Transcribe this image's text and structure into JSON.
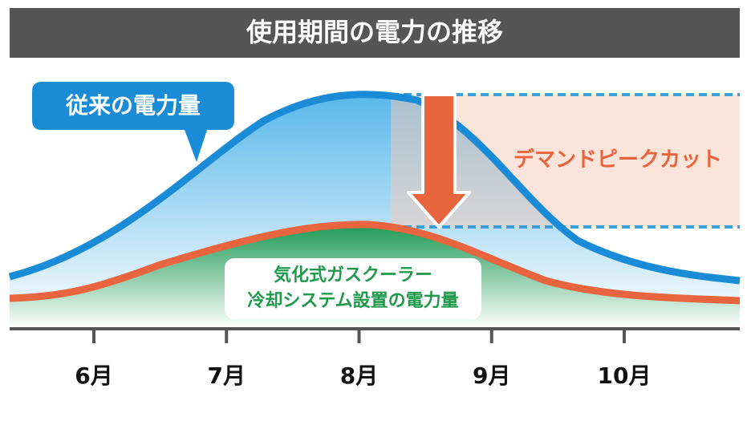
{
  "title": "使用期間の電力の推移",
  "callout": "従来の電力量",
  "annotation": "デマンドピークカット",
  "label": {
    "line1": "気化式ガスクーラー",
    "line2": "冷却システム設置の電力量"
  },
  "months": [
    "6月",
    "7月",
    "8月",
    "9月",
    "10月"
  ]
}
